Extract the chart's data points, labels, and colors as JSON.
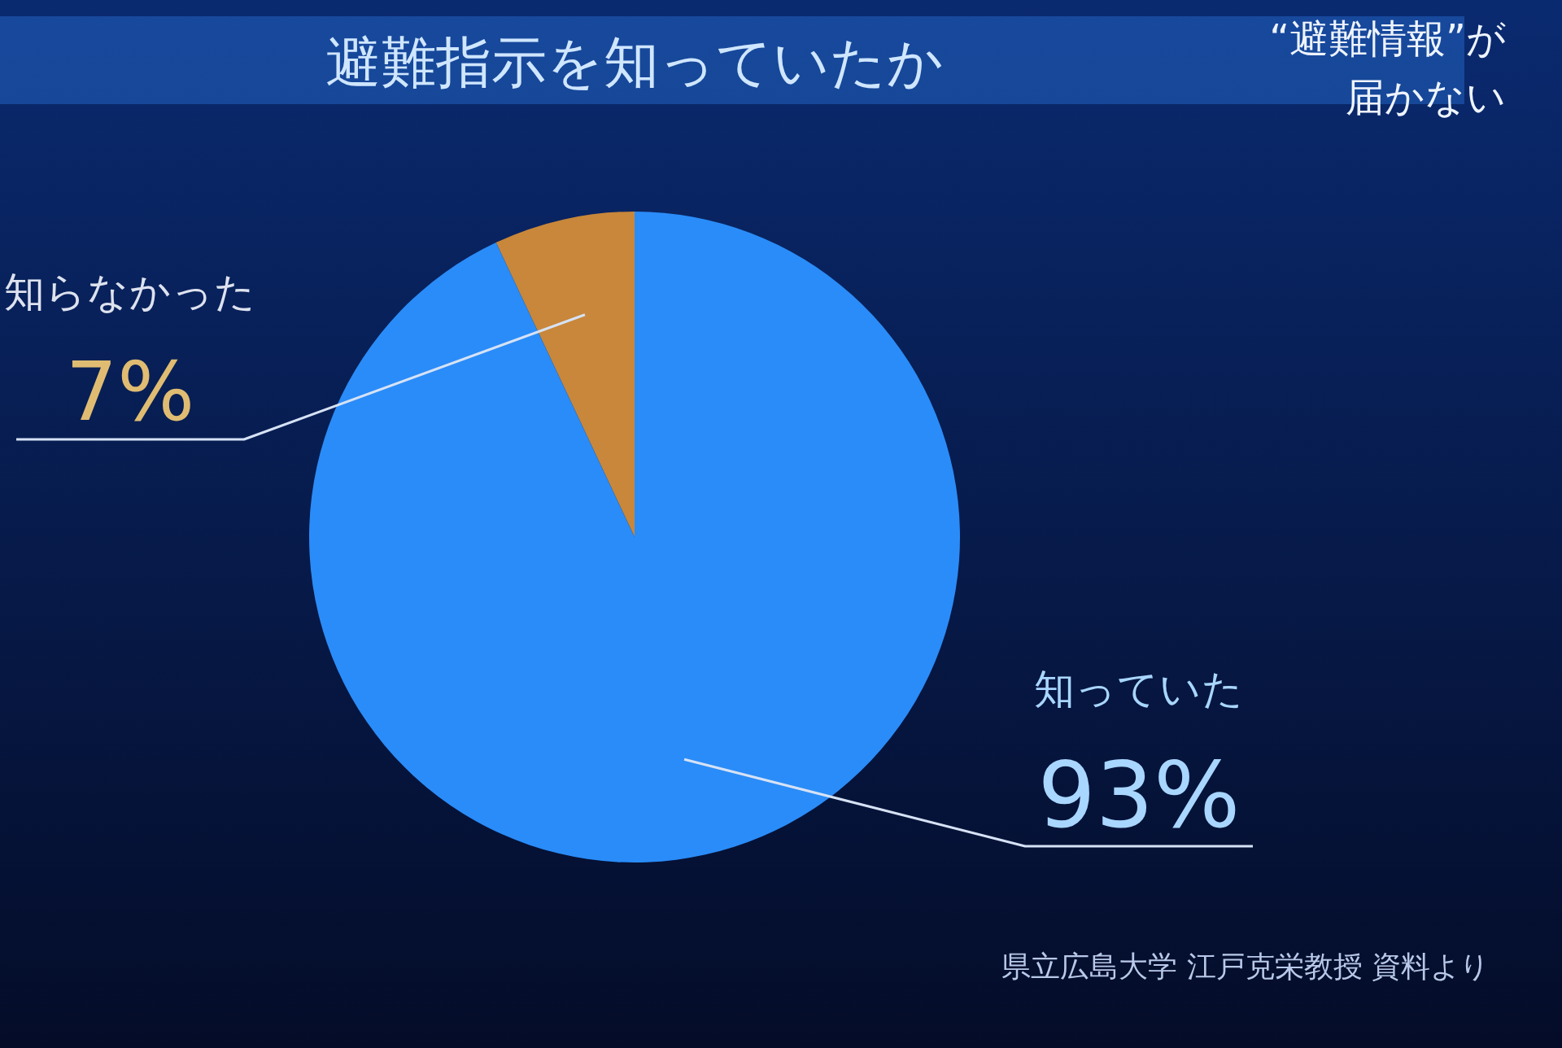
{
  "chart_data": {
    "type": "pie",
    "title": "避難指示を知っていたか",
    "subtitle": "“避難情報”が届かない",
    "categories": [
      "知らなかった",
      "知っていた"
    ],
    "values": [
      7,
      93
    ],
    "colors": [
      "#c8873a",
      "#2a8cf8"
    ],
    "value_labels": [
      "7%",
      "93%"
    ],
    "annotations": [
      "県立広島大学 江戸克栄教授 資料より"
    ]
  }
}
